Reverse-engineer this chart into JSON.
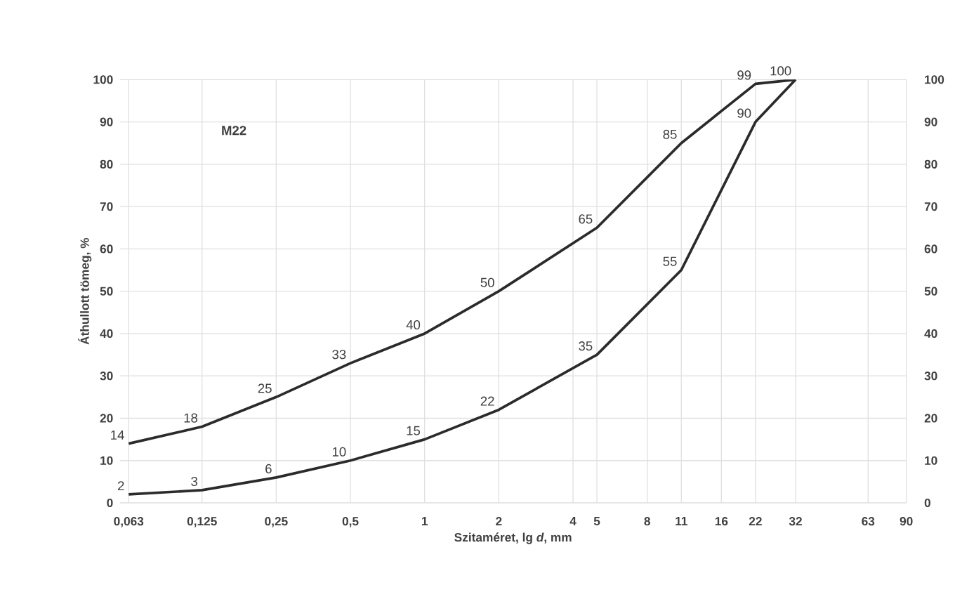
{
  "chart_data": {
    "type": "line",
    "xlabel": "Szitaméret, lg *d*, mm",
    "ylabel": "Áthullott tömeg, %",
    "annotations": [
      "M22"
    ],
    "log": "x",
    "xlim": [
      0.058,
      90
    ],
    "xticks": [
      {
        "value": 0.063,
        "label": "0,063"
      },
      {
        "value": 0.125,
        "label": "0,125"
      },
      {
        "value": 0.25,
        "label": "0,25"
      },
      {
        "value": 0.5,
        "label": "0,5"
      },
      1,
      2,
      4,
      5,
      8,
      11,
      16,
      22,
      32,
      63,
      90
    ],
    "ylim": [
      0,
      100
    ],
    "yticks": [
      0,
      10,
      20,
      30,
      40,
      50,
      60,
      70,
      80,
      90,
      100
    ],
    "y2lim": [
      0,
      100
    ],
    "y2ticks": [
      0,
      10,
      20,
      30,
      40,
      50,
      60,
      70,
      80,
      90,
      100
    ],
    "x": [
      0.063,
      0.125,
      0.25,
      0.5,
      1,
      2,
      5,
      11,
      22,
      32
    ],
    "series": [
      {
        "color": "#2b2b2b",
        "values": [
          14,
          18,
          25,
          33,
          40,
          50,
          65,
          85,
          99,
          100
        ],
        "value_labels": [
          "14",
          "18",
          "25",
          "33",
          "40",
          "50",
          "65",
          "85",
          "99",
          "100"
        ]
      },
      {
        "color": "#2b2b2b",
        "values": [
          2,
          3,
          6,
          10,
          15,
          22,
          35,
          55,
          90,
          100
        ],
        "value_labels": [
          "2",
          "3",
          "6",
          "10",
          "15",
          "22",
          "35",
          "55",
          "90",
          null
        ]
      }
    ],
    "grid": true,
    "marker": "none",
    "line_style": "solid"
  }
}
